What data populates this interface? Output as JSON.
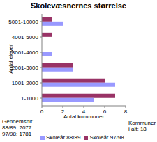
{
  "chart_data": {
    "type": "bar",
    "orientation": "horizontal",
    "title": "Skolevæsnernes størrelse",
    "x_label": "Antal kommuner",
    "y_label": "Antal elever",
    "categories": [
      "1-1000",
      "1001-2000",
      "2001-3000",
      "3001-4000",
      "4001-5000",
      "5001-10000"
    ],
    "series": [
      {
        "name": "Skoleår 88/89",
        "color": "#9999ff",
        "values": [
          5,
          7,
          3,
          1,
          0,
          2
        ]
      },
      {
        "name": "Skoleår 97/98",
        "color": "#993366",
        "values": [
          7,
          6,
          3,
          0,
          1,
          1
        ]
      }
    ],
    "xlim": [
      0,
      8
    ],
    "xticks": [
      0,
      2,
      4,
      6,
      8
    ],
    "grid": false,
    "legend": "bottom",
    "annotations": [
      "Gennemsnit:",
      "88/89: 2077",
      "97/98: 1781",
      "Kommuner i alt: 18"
    ]
  }
}
